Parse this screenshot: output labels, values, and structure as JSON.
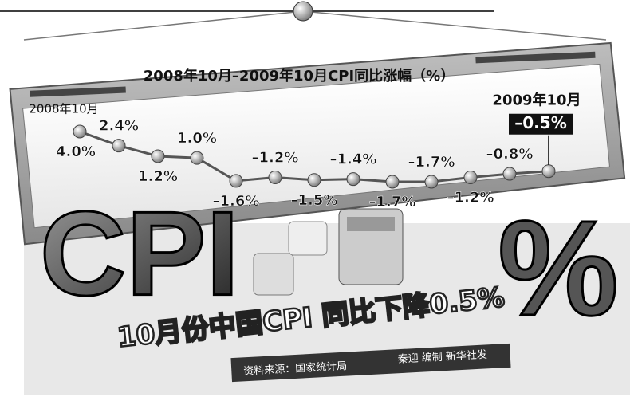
{
  "chart_data": {
    "type": "line",
    "title": "2008年10月–2009年10月CPI同比涨幅（%）",
    "categories": [
      "2008年10月",
      null,
      null,
      null,
      null,
      null,
      null,
      null,
      null,
      null,
      null,
      null,
      "2009年10月"
    ],
    "values": [
      4.0,
      2.4,
      1.2,
      1.0,
      -1.6,
      -1.2,
      -1.5,
      -1.4,
      -1.7,
      -1.7,
      -1.2,
      -0.8,
      -0.5
    ],
    "value_labels": [
      "4.0%",
      "2.4%",
      "1.2%",
      "1.0%",
      "–1.6%",
      "–1.2%",
      "–1.5%",
      "–1.4%",
      "–1.7%",
      "–1.7%",
      "–1.2%",
      "–0.8%",
      "–0.5%"
    ],
    "color": "#555555",
    "annotations": {
      "big_text": "CPI",
      "percent_sign": "%",
      "headline": "10月份中国CPI 同比下降0.5%",
      "source": "资料来源：国家统计局",
      "credit": "秦迎 编制 新华社发"
    }
  }
}
